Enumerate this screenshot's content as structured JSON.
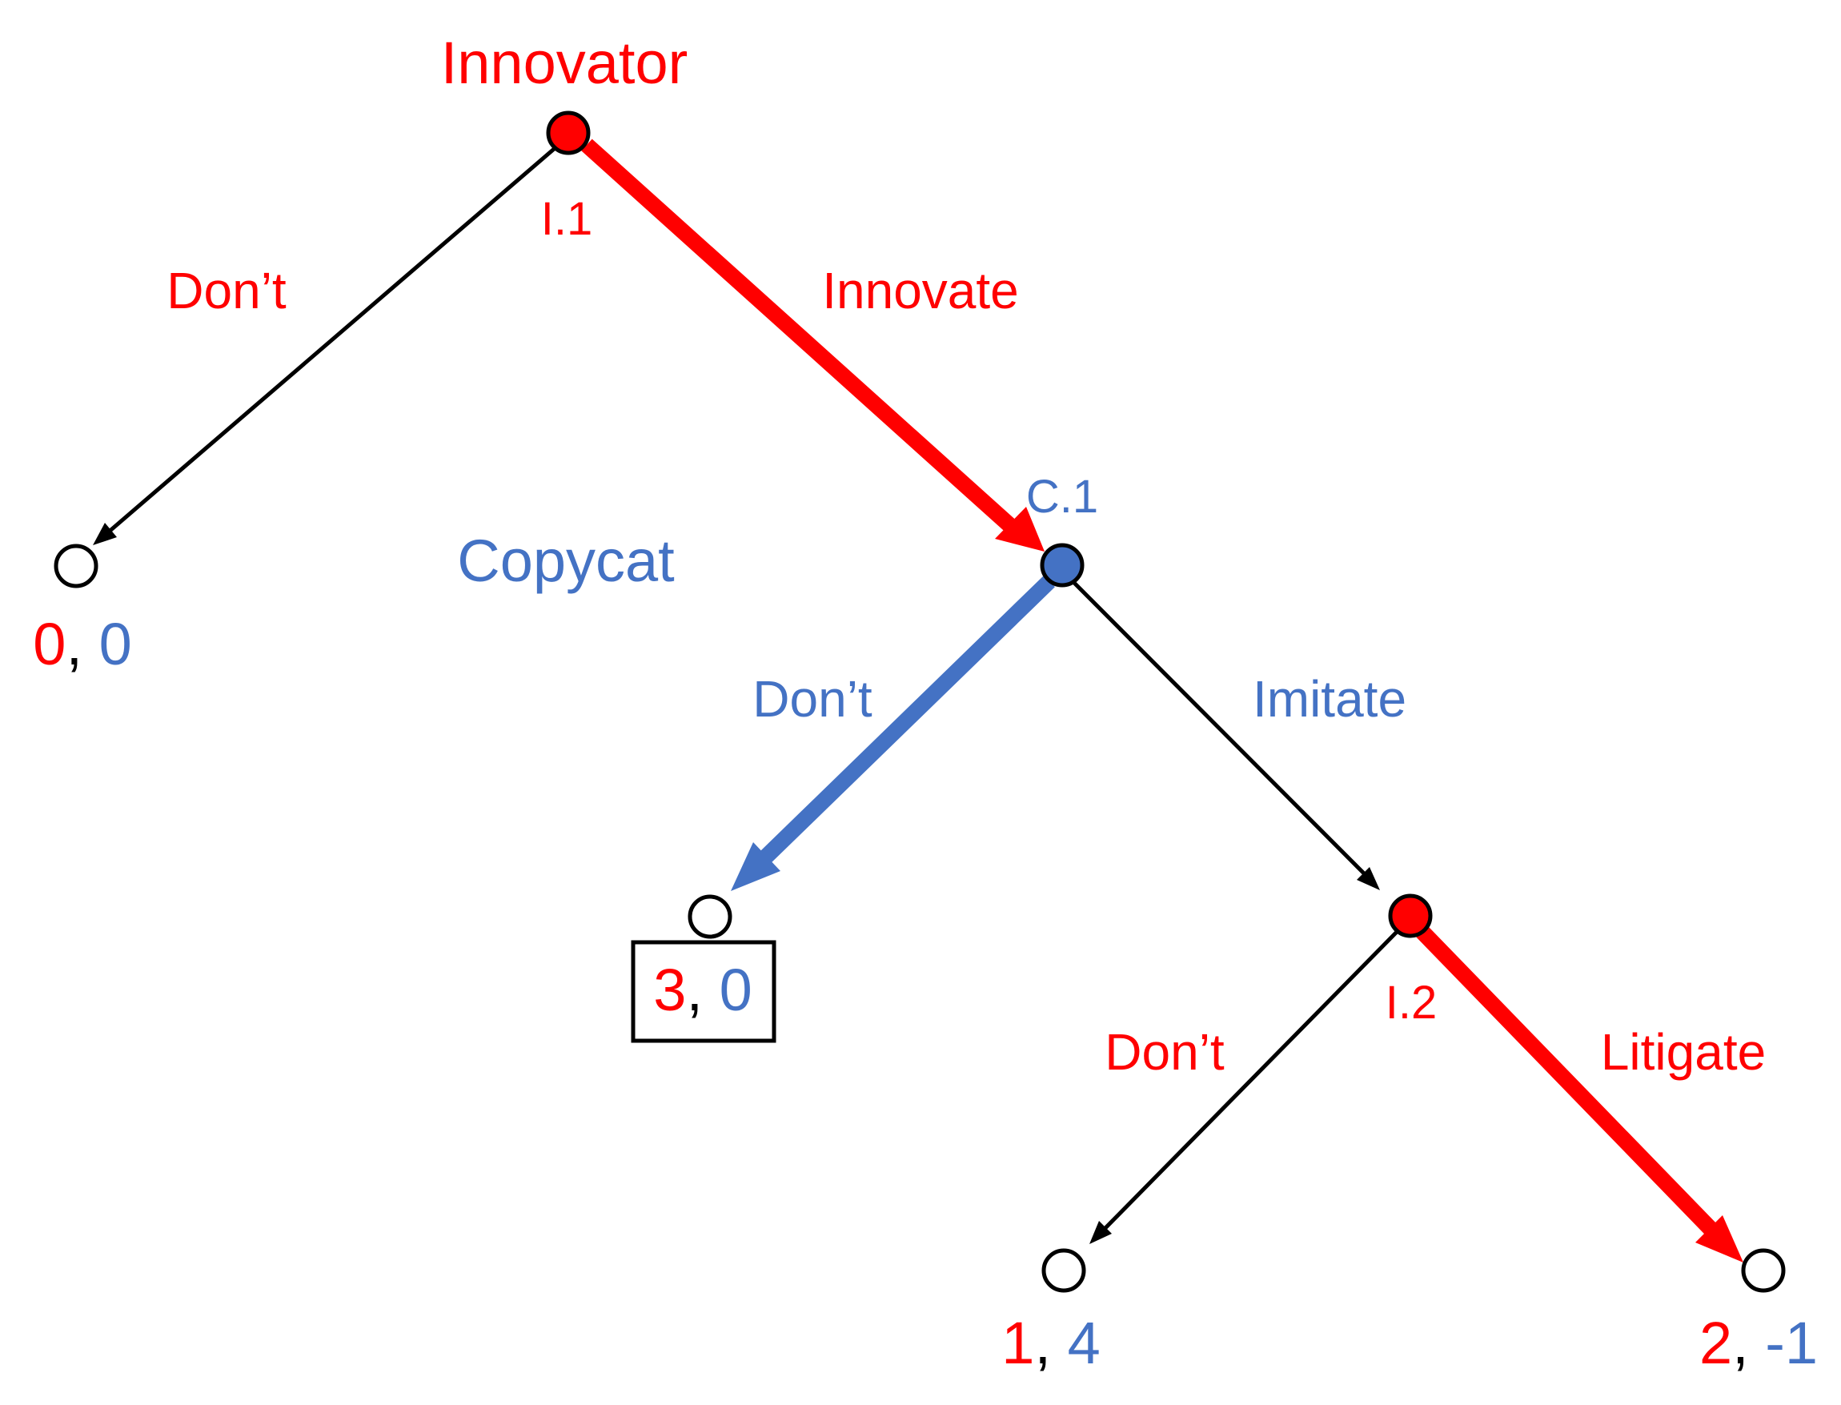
{
  "players": {
    "innovator": {
      "name": "Innovator",
      "color": "#ff0000"
    },
    "copycat": {
      "name": "Copycat",
      "color": "#4472c4"
    }
  },
  "nodes": {
    "i1": {
      "label": "I.1",
      "player": "innovator"
    },
    "c1": {
      "label": "C.1",
      "player": "copycat"
    },
    "i2": {
      "label": "I.2",
      "player": "innovator"
    }
  },
  "moves": {
    "i1_dont": {
      "label": "Don’t",
      "player": "innovator",
      "equilibrium": false
    },
    "i1_innovate": {
      "label": "Innovate",
      "player": "innovator",
      "equilibrium": true
    },
    "c1_dont": {
      "label": "Don’t",
      "player": "copycat",
      "equilibrium": true
    },
    "c1_imitate": {
      "label": "Imitate",
      "player": "copycat",
      "equilibrium": false
    },
    "i2_dont": {
      "label": "Don’t",
      "player": "innovator",
      "equilibrium": false
    },
    "i2_litigate": {
      "label": "Litigate",
      "player": "innovator",
      "equilibrium": true
    }
  },
  "payoffs": {
    "p1": {
      "innovator": "0",
      "copycat": "0",
      "separator": ", "
    },
    "p2": {
      "innovator": "3",
      "copycat": "0",
      "separator": ", ",
      "highlighted": true
    },
    "p3": {
      "innovator": "1",
      "copycat": "4",
      "separator": ", "
    },
    "p4": {
      "innovator": "2",
      "copycat": "-1",
      "separator": ", "
    }
  },
  "colors": {
    "innovator": "#ff0000",
    "copycat": "#4472c4",
    "plain_edge": "#000000",
    "terminal_fill": "#ffffff"
  }
}
